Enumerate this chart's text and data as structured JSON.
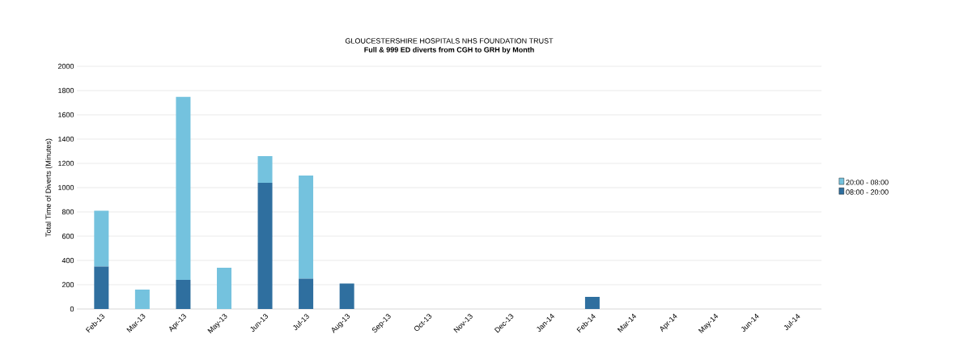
{
  "chart_data": {
    "type": "bar",
    "stacked": true,
    "title": "GLOUCESTERSHIRE HOSPITALS NHS FOUNDATION TRUST",
    "subtitle": "**Full & 999 ED diverts from CGH to GRH by Month**",
    "ylabel": "Total Time of Diverts (Minutes)",
    "categories": [
      "Feb-13",
      "Mar-13",
      "Apr-13",
      "May-13",
      "Jun-13",
      "Jul-13",
      "Aug-13",
      "Sep-13",
      "Oct-13",
      "Nov-13",
      "Dec-13",
      "Jan-14",
      "Feb-14",
      "Mar-14",
      "Apr-14",
      "May-14",
      "Jun-14",
      "Jul-14"
    ],
    "series": [
      {
        "name": "08:00 - 20:00",
        "color": "#2f6f9f",
        "values": [
          350,
          0,
          240,
          0,
          1040,
          250,
          210,
          0,
          0,
          0,
          0,
          0,
          100,
          0,
          0,
          0,
          0,
          0
        ]
      },
      {
        "name": "20:00 - 08:00",
        "color": "#74c2de",
        "values": [
          460,
          160,
          1510,
          340,
          220,
          850,
          0,
          0,
          0,
          0,
          0,
          0,
          0,
          0,
          0,
          0,
          0,
          0
        ]
      }
    ],
    "ylim": [
      0,
      2000
    ],
    "yticks": [
      0,
      200,
      400,
      600,
      800,
      1000,
      1200,
      1400,
      1600,
      1800,
      2000
    ],
    "grid": "y",
    "legend": "right"
  }
}
